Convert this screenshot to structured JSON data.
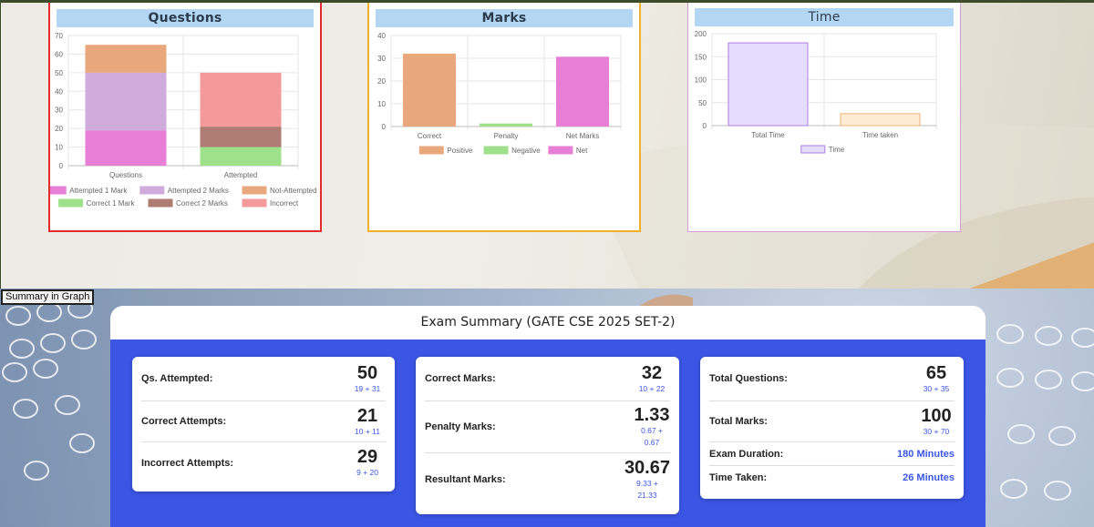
{
  "charts": {
    "questions": {
      "title": "Questions",
      "legend": [
        "Attempted 1 Mark",
        "Attempted 2 Marks",
        "Not-Attempted",
        "Correct 1 Mark",
        "Correct 2 Marks",
        "Incorrect"
      ],
      "colors": {
        "att1": "#e77fd6",
        "att2": "#cfacdc",
        "notatt": "#e8a87c",
        "corr1": "#9fe08a",
        "corr2": "#ae7c72",
        "incorrect": "#f59a9a"
      }
    },
    "marks": {
      "title": "Marks",
      "legend": [
        "Positive",
        "Negative",
        "Net"
      ],
      "colors": {
        "positive": "#e8a87c",
        "negative": "#9fe08a",
        "net": "#e77fd6"
      }
    },
    "time": {
      "title": "Time",
      "legend": [
        "Time"
      ],
      "colors": {
        "total": "#e6dcfb",
        "taken": "#fdebd4"
      }
    }
  },
  "chart_data": [
    {
      "type": "bar",
      "title": "Questions",
      "stacked": true,
      "categories": [
        "Questions",
        "Attempted"
      ],
      "ylim": [
        0,
        70
      ],
      "yticks": [
        0,
        10,
        20,
        30,
        40,
        50,
        60,
        70
      ],
      "series": [
        {
          "name": "Attempted 1 Mark",
          "values": [
            19,
            0
          ]
        },
        {
          "name": "Attempted 2 Marks",
          "values": [
            31,
            0
          ]
        },
        {
          "name": "Not-Attempted",
          "values": [
            15,
            0
          ]
        },
        {
          "name": "Correct 1 Mark",
          "values": [
            0,
            10
          ]
        },
        {
          "name": "Correct 2 Marks",
          "values": [
            0,
            11
          ]
        },
        {
          "name": "Incorrect",
          "values": [
            0,
            29
          ]
        }
      ]
    },
    {
      "type": "bar",
      "title": "Marks",
      "categories": [
        "Correct",
        "Penalty",
        "Net Marks"
      ],
      "ylim": [
        0,
        40
      ],
      "yticks": [
        0,
        10,
        20,
        30,
        40
      ],
      "series": [
        {
          "name": "Positive",
          "values": [
            32,
            0,
            0
          ]
        },
        {
          "name": "Negative",
          "values": [
            0,
            1.33,
            0
          ]
        },
        {
          "name": "Net",
          "values": [
            0,
            0,
            30.67
          ]
        }
      ]
    },
    {
      "type": "bar",
      "title": "Time",
      "categories": [
        "Total Time",
        "Time taken"
      ],
      "ylim": [
        0,
        200
      ],
      "yticks": [
        0,
        50,
        100,
        150,
        200
      ],
      "series": [
        {
          "name": "Time",
          "values": [
            180,
            26
          ]
        }
      ]
    }
  ],
  "summary_button": "Summary in Graph",
  "summary": {
    "title": "Exam Summary (GATE CSE 2025 SET-2)",
    "col1": [
      {
        "label": "Qs. Attempted:",
        "value": "50",
        "sub": "19 + 31"
      },
      {
        "label": "Correct Attempts:",
        "value": "21",
        "sub": "10 + 11"
      },
      {
        "label": "Incorrect Attempts:",
        "value": "29",
        "sub": "9 + 20"
      }
    ],
    "col2": [
      {
        "label": "Correct Marks:",
        "value": "32",
        "sub": "10 + 22"
      },
      {
        "label": "Penalty Marks:",
        "value": "1.33",
        "sub1": "0.67 +",
        "sub2": "0.67"
      },
      {
        "label": "Resultant Marks:",
        "value": "30.67",
        "sub1": "9.33 +",
        "sub2": "21.33"
      }
    ],
    "col3": [
      {
        "label": "Total Questions:",
        "value": "65",
        "sub": "30 + 35"
      },
      {
        "label": "Total Marks:",
        "value": "100",
        "sub": "30 + 70"
      },
      {
        "label": "Exam Duration:",
        "value": "180 Minutes"
      },
      {
        "label": "Time Taken:",
        "value": "26 Minutes"
      }
    ]
  }
}
